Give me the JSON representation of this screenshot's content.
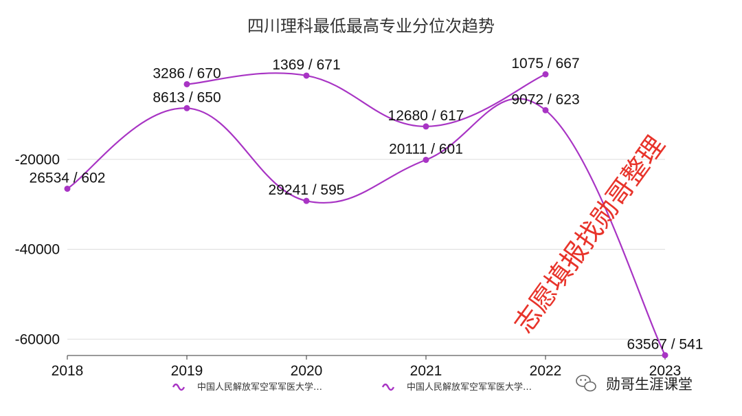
{
  "chart_data": {
    "type": "line",
    "title": "四川理科最低最高专业分位次趋势",
    "x": [
      "2018",
      "2019",
      "2020",
      "2021",
      "2022",
      "2023"
    ],
    "ylim": [
      -64000,
      0
    ],
    "yticks": [
      -20000,
      -40000,
      -60000
    ],
    "grid": true,
    "series": [
      {
        "name": "中国人民解放军空军军医大学…",
        "color": "#a834c4",
        "values": [
          null,
          -3286,
          -1369,
          -12680,
          -1075,
          null
        ],
        "labels": [
          "",
          "3286 / 670",
          "1369 / 671",
          "12680 / 617",
          "1075 / 667",
          ""
        ]
      },
      {
        "name": "中国人民解放军空军军医大学…",
        "color": "#a834c4",
        "values": [
          -26534,
          -8613,
          -29241,
          -20111,
          -9072,
          -63567
        ],
        "labels": [
          "26534 / 602",
          "8613 / 650",
          "29241 / 595",
          "20111 / 601",
          "9072 / 623",
          "63567 / 541"
        ]
      }
    ],
    "legend_position": "bottom"
  },
  "watermark": "志愿填报找勋哥整理",
  "brand": "勋哥生涯课堂",
  "colors": {
    "line": "#a834c4",
    "watermark": "#e8332a",
    "grid": "#dddddd"
  }
}
